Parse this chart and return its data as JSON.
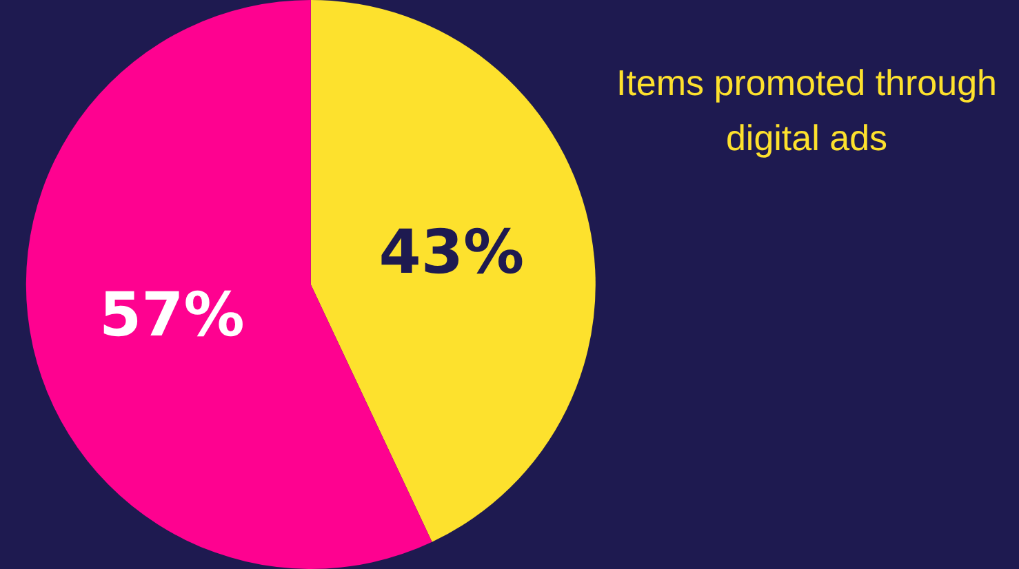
{
  "chart_data": {
    "type": "pie",
    "categories": [
      "Items promoted through digital ads",
      null
    ],
    "values": [
      43,
      57
    ],
    "colors": [
      "#fde12d",
      "#fe0290"
    ],
    "value_labels": [
      "43%",
      "57%"
    ],
    "legend": false
  }
}
